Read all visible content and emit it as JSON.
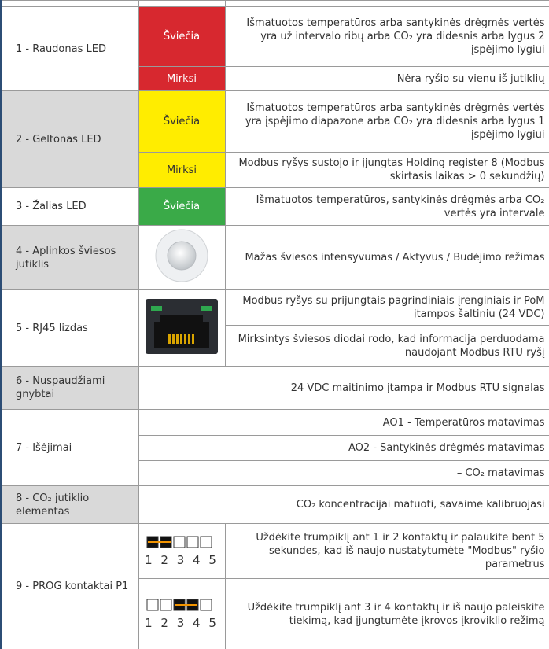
{
  "rows": [
    {
      "label": "1 - Raudonas LED",
      "entries": [
        {
          "state": "Šviečia",
          "description": "Išmatuotos temperatūros arba santykinės drėgmės vertės yra už intervalo ribų arba CO₂ yra didesnis arba lygus 2 įspėjimo lygiui"
        },
        {
          "state": "Mirksi",
          "description": "Nėra ryšio su vienu iš jutiklių"
        }
      ]
    },
    {
      "label": "2 - Geltonas LED",
      "entries": [
        {
          "state": "Šviečia",
          "description": "Išmatuotos temperatūros arba santykinės drėgmės vertės yra įspėjimo diapazone arba CO₂ yra didesnis arba lygus 1 įspėjimo lygiui"
        },
        {
          "state": "Mirksi",
          "description": "Modbus ryšys sustojo ir įjungtas Holding register 8 (Modbus skirtasis laikas > 0 sekundžių)"
        }
      ]
    },
    {
      "label": "3 - Žalias LED",
      "entries": [
        {
          "state": "Šviečia",
          "description": "Išmatuotos temperatūros, santykinės drėgmės arba CO₂ vertės yra intervale"
        }
      ]
    },
    {
      "label": "4 - Aplinkos šviesos jutiklis",
      "entries": [
        {
          "description": "Mažas šviesos intensyvumas / Aktyvus / Budėjimo režimas"
        }
      ]
    },
    {
      "label": "5 - RJ45 lizdas",
      "entries": [
        {
          "description": "Modbus ryšys su prijungtais pagrindiniais įrenginiais ir PoM įtampos šaltiniu (24 VDC)"
        },
        {
          "description": "Mirksintys šviesos diodai rodo, kad informacija perduodama naudojant Modbus RTU ryšį"
        }
      ]
    },
    {
      "label": "6 - Nuspaudžiami gnybtai",
      "entries": [
        {
          "description": "24 VDC maitinimo įtampa ir Modbus RTU signalas"
        }
      ]
    },
    {
      "label": "7 - Išėjimai",
      "entries": [
        {
          "description": "AO1 - Temperatūros matavimas"
        },
        {
          "description": "AO2 - Santykinės drėgmės matavimas"
        },
        {
          "description": "– CO₂ matavimas"
        }
      ]
    },
    {
      "label": "8 - CO₂ jutiklio elementas",
      "entries": [
        {
          "description": "CO₂ koncentracijai matuoti, savaime kalibruojasi"
        }
      ]
    },
    {
      "label": "9 - PROG kontaktai P1",
      "entries": [
        {
          "pins": "1 2 3 4 5",
          "description": "Uždėkite trumpiklį ant 1 ir 2 kontaktų ir palaukite bent 5 sekundes, kad iš naujo nustatytumėte \"Modbus\" ryšio parametrus"
        },
        {
          "pins": "1 2 3 4 5",
          "description": "Uždėkite trumpiklį ant 3 ir 4 kontaktų ir iš naujo paleiskite tiekimą, kad įjungtumėte įkrovos įkroviklio režimą"
        }
      ]
    }
  ]
}
